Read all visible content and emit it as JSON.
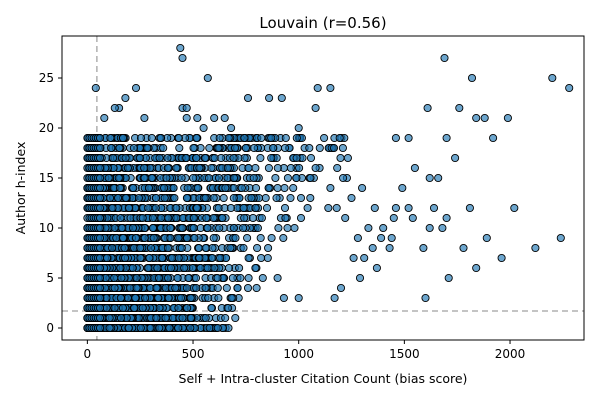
{
  "chart_data": {
    "type": "scatter",
    "title": "Louvain (r=0.56)",
    "xlabel": "Self + Intra-cluster Citation Count (bias score)",
    "ylabel": "Author h-index",
    "xlim": [
      -120,
      2350
    ],
    "ylim": [
      -1.2,
      29.2
    ],
    "xticks": [
      0,
      500,
      1000,
      1500,
      2000
    ],
    "yticks": [
      0,
      5,
      10,
      15,
      20,
      25
    ],
    "reference_lines": {
      "vertical_x": 45,
      "horizontal_y": 1.7
    },
    "grid": false,
    "marker_color": "#1f77b4",
    "marker_edge_color": "#000000",
    "points": [
      [
        440,
        28
      ],
      [
        450,
        27
      ],
      [
        1690,
        27
      ],
      [
        2200,
        25
      ],
      [
        2280,
        24
      ],
      [
        570,
        25
      ],
      [
        1820,
        25
      ],
      [
        40,
        24
      ],
      [
        230,
        24
      ],
      [
        1090,
        24
      ],
      [
        1150,
        24
      ],
      [
        760,
        23
      ],
      [
        860,
        23
      ],
      [
        920,
        23
      ],
      [
        180,
        23
      ],
      [
        150,
        22
      ],
      [
        130,
        22
      ],
      [
        450,
        22
      ],
      [
        470,
        22
      ],
      [
        1080,
        22
      ],
      [
        1610,
        22
      ],
      [
        1760,
        22
      ],
      [
        80,
        21
      ],
      [
        270,
        21
      ],
      [
        470,
        21
      ],
      [
        520,
        21
      ],
      [
        600,
        21
      ],
      [
        650,
        21
      ],
      [
        1840,
        21
      ],
      [
        1880,
        21
      ],
      [
        1990,
        21
      ],
      [
        550,
        20
      ],
      [
        680,
        20
      ],
      [
        1000,
        20
      ],
      [
        1920,
        19
      ],
      [
        1460,
        19
      ],
      [
        1520,
        19
      ],
      [
        1700,
        19
      ],
      [
        870,
        19
      ],
      [
        750,
        18
      ],
      [
        1100,
        18
      ],
      [
        1740,
        17
      ],
      [
        1550,
        16
      ],
      [
        1620,
        15
      ],
      [
        1660,
        15
      ],
      [
        1490,
        14
      ],
      [
        1460,
        12
      ],
      [
        1520,
        12
      ],
      [
        2020,
        12
      ],
      [
        1810,
        12
      ],
      [
        1640,
        12
      ],
      [
        1540,
        11
      ],
      [
        1700,
        11
      ],
      [
        1620,
        10
      ],
      [
        1680,
        10
      ],
      [
        1890,
        9
      ],
      [
        2240,
        9
      ],
      [
        1430,
        8
      ],
      [
        1590,
        8
      ],
      [
        1780,
        8
      ],
      [
        2120,
        8
      ],
      [
        1960,
        7
      ],
      [
        1840,
        6
      ],
      [
        1710,
        5
      ],
      [
        1390,
        9
      ],
      [
        1350,
        8
      ],
      [
        1260,
        7
      ],
      [
        1310,
        7
      ],
      [
        1370,
        6
      ],
      [
        1290,
        5
      ],
      [
        1200,
        4
      ],
      [
        1600,
        3
      ],
      [
        1000,
        3
      ],
      [
        1170,
        3
      ],
      [
        450,
        1
      ],
      [
        490,
        1
      ],
      [
        560,
        1
      ],
      [
        660,
        4
      ],
      [
        760,
        4
      ],
      [
        830,
        5
      ],
      [
        900,
        5
      ],
      [
        930,
        3
      ],
      [
        1140,
        12
      ],
      [
        1180,
        12
      ],
      [
        1220,
        11
      ],
      [
        1250,
        13
      ],
      [
        1210,
        15
      ],
      [
        1300,
        14
      ],
      [
        1120,
        19
      ],
      [
        1050,
        18
      ],
      [
        990,
        17
      ],
      [
        1080,
        16
      ],
      [
        1280,
        9
      ],
      [
        1400,
        10
      ],
      [
        1450,
        11
      ],
      [
        1360,
        12
      ],
      [
        1440,
        9
      ],
      [
        1330,
        10
      ]
    ]
  }
}
